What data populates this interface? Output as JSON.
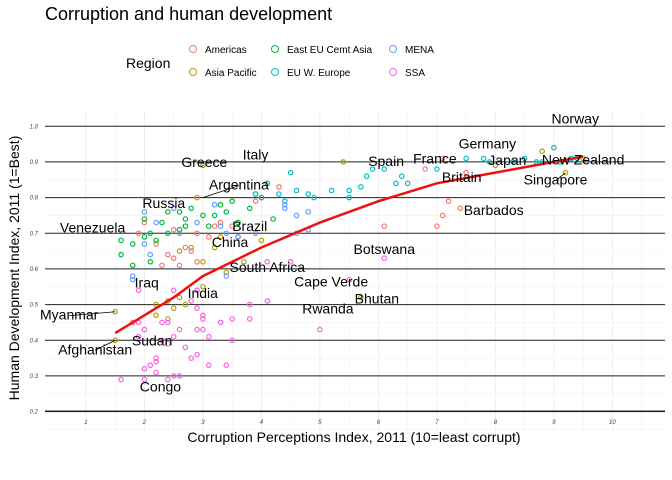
{
  "chart_data": {
    "type": "scatter",
    "title": "Corruption and human development",
    "xlabel": "Corruption Perceptions Index, 2011 (10=least corrupt)",
    "ylabel": "Human Development Index, 2011 (1=Best)",
    "xlim": [
      0.3,
      10.9
    ],
    "ylim": [
      0.14,
      1.04
    ],
    "xticks": [
      "1",
      "2",
      "3",
      "4",
      "5",
      "6",
      "7",
      "8",
      "9",
      "10"
    ],
    "yticks": [
      "0.2",
      "0.3",
      "0.4",
      "0.5",
      "0.6",
      "0.7",
      "0.8",
      "0.9",
      "1.0"
    ],
    "legend": {
      "title": "Region",
      "position": "top",
      "entries": [
        {
          "name": "Americas",
          "color": "#F8766D"
        },
        {
          "name": "Asia Pacific",
          "color": "#B79F00"
        },
        {
          "name": "East EU Cemt Asia",
          "color": "#00BA38"
        },
        {
          "name": "EU W. Europe",
          "color": "#00BFC4"
        },
        {
          "name": "MENA",
          "color": "#619CFF"
        },
        {
          "name": "SSA",
          "color": "#F564E3"
        }
      ]
    },
    "trend": {
      "color": "#EE1111",
      "points": [
        [
          1.5,
          0.42
        ],
        [
          2,
          0.47
        ],
        [
          2.5,
          0.52
        ],
        [
          3,
          0.58
        ],
        [
          4,
          0.66
        ],
        [
          5,
          0.73
        ],
        [
          6,
          0.79
        ],
        [
          7,
          0.84
        ],
        [
          8,
          0.87
        ],
        [
          9,
          0.9
        ],
        [
          9.5,
          0.915
        ]
      ]
    },
    "series": [
      {
        "name": "Americas",
        "points": [
          [
            7.1,
            0.91
          ],
          [
            6.8,
            0.88
          ],
          [
            7.5,
            0.87
          ],
          [
            7.2,
            0.79
          ],
          [
            7.0,
            0.72
          ],
          [
            7.1,
            0.75
          ],
          [
            7.4,
            0.77
          ],
          [
            6.1,
            0.72
          ],
          [
            4.3,
            0.83
          ],
          [
            3.9,
            0.79
          ],
          [
            3.6,
            0.69
          ],
          [
            3.3,
            0.73
          ],
          [
            3.1,
            0.69
          ],
          [
            3.2,
            0.72
          ],
          [
            2.7,
            0.72
          ],
          [
            2.7,
            0.66
          ],
          [
            2.4,
            0.64
          ],
          [
            2.5,
            0.71
          ],
          [
            2.2,
            0.67
          ],
          [
            2.8,
            0.65
          ],
          [
            3.5,
            0.72
          ],
          [
            2.6,
            0.61
          ],
          [
            2.3,
            0.61
          ],
          [
            2.9,
            0.62
          ],
          [
            2.5,
            0.63
          ],
          [
            2.9,
            0.7
          ],
          [
            1.8,
            0.45
          ],
          [
            2.0,
            0.73
          ],
          [
            1.9,
            0.7
          ]
        ]
      },
      {
        "name": "Asia Pacific",
        "points": [
          [
            9.5,
            0.91
          ],
          [
            8.8,
            0.93
          ],
          [
            9.2,
            0.87
          ],
          [
            8.0,
            0.89
          ],
          [
            5.4,
            0.9
          ],
          [
            3.0,
            0.89
          ],
          [
            2.9,
            0.8
          ],
          [
            3.4,
            0.59
          ],
          [
            3.6,
            0.69
          ],
          [
            3.0,
            0.62
          ],
          [
            3.3,
            0.69
          ],
          [
            3.0,
            0.55
          ],
          [
            2.4,
            0.51
          ],
          [
            2.5,
            0.49
          ],
          [
            2.7,
            0.5
          ],
          [
            2.6,
            0.52
          ],
          [
            2.2,
            0.47
          ],
          [
            1.5,
            0.4
          ],
          [
            2.2,
            0.5
          ],
          [
            1.5,
            0.48
          ],
          [
            2.4,
            0.46
          ],
          [
            2.8,
            0.66
          ],
          [
            3.2,
            0.66
          ],
          [
            4.0,
            0.68
          ],
          [
            3.7,
            0.62
          ],
          [
            2.6,
            0.65
          ],
          [
            5.7,
            0.52
          ]
        ]
      },
      {
        "name": "East EU Cemt Asia",
        "points": [
          [
            4.1,
            0.84
          ],
          [
            4.0,
            0.8
          ],
          [
            3.9,
            0.81
          ],
          [
            3.5,
            0.79
          ],
          [
            3.4,
            0.76
          ],
          [
            3.3,
            0.78
          ],
          [
            3.0,
            0.75
          ],
          [
            2.7,
            0.74
          ],
          [
            2.6,
            0.76
          ],
          [
            2.4,
            0.76
          ],
          [
            2.7,
            0.72
          ],
          [
            2.3,
            0.73
          ],
          [
            2.1,
            0.7
          ],
          [
            2.4,
            0.7
          ],
          [
            2.2,
            0.68
          ],
          [
            2.0,
            0.69
          ],
          [
            1.6,
            0.68
          ],
          [
            1.8,
            0.67
          ],
          [
            2.1,
            0.62
          ],
          [
            1.6,
            0.64
          ],
          [
            1.8,
            0.61
          ],
          [
            2.6,
            0.71
          ],
          [
            3.1,
            0.72
          ],
          [
            3.2,
            0.75
          ],
          [
            2.8,
            0.77
          ],
          [
            3.8,
            0.77
          ],
          [
            4.2,
            0.74
          ],
          [
            3.6,
            0.73
          ],
          [
            2.0,
            0.74
          ]
        ]
      },
      {
        "name": "EU W. Europe",
        "points": [
          [
            9.4,
            0.91
          ],
          [
            9.0,
            0.94
          ],
          [
            8.7,
            0.9
          ],
          [
            8.5,
            0.91
          ],
          [
            8.3,
            0.9
          ],
          [
            7.9,
            0.9
          ],
          [
            7.8,
            0.91
          ],
          [
            7.5,
            0.91
          ],
          [
            7.0,
            0.88
          ],
          [
            6.1,
            0.88
          ],
          [
            5.9,
            0.88
          ],
          [
            6.5,
            0.84
          ],
          [
            6.3,
            0.84
          ],
          [
            5.8,
            0.86
          ],
          [
            5.5,
            0.82
          ],
          [
            5.7,
            0.83
          ],
          [
            5.5,
            0.8
          ],
          [
            5.2,
            0.82
          ],
          [
            4.8,
            0.81
          ],
          [
            4.6,
            0.82
          ],
          [
            4.4,
            0.79
          ],
          [
            3.9,
            0.81
          ],
          [
            4.3,
            0.81
          ],
          [
            8.8,
            0.9
          ],
          [
            9.1,
            0.9
          ],
          [
            9.3,
            0.91
          ],
          [
            6.4,
            0.86
          ],
          [
            4.9,
            0.8
          ],
          [
            4.5,
            0.87
          ]
        ]
      },
      {
        "name": "MENA",
        "points": [
          [
            2.0,
            0.76
          ],
          [
            2.2,
            0.73
          ],
          [
            2.5,
            0.77
          ],
          [
            3.2,
            0.78
          ],
          [
            4.6,
            0.75
          ],
          [
            4.8,
            0.76
          ],
          [
            4.6,
            0.7
          ],
          [
            4.4,
            0.77
          ],
          [
            3.9,
            0.7
          ],
          [
            3.6,
            0.69
          ],
          [
            3.4,
            0.7
          ],
          [
            2.9,
            0.73
          ],
          [
            3.3,
            0.72
          ],
          [
            2.6,
            0.7
          ],
          [
            2.1,
            0.64
          ],
          [
            1.8,
            0.57
          ],
          [
            1.8,
            0.58
          ],
          [
            3.4,
            0.58
          ],
          [
            4.4,
            0.78
          ],
          [
            4.8,
            0.71
          ],
          [
            2.0,
            0.67
          ]
        ]
      },
      {
        "name": "SSA",
        "points": [
          [
            6.1,
            0.63
          ],
          [
            5.5,
            0.57
          ],
          [
            5.0,
            0.43
          ],
          [
            4.5,
            0.62
          ],
          [
            4.1,
            0.62
          ],
          [
            4.1,
            0.51
          ],
          [
            3.8,
            0.5
          ],
          [
            3.5,
            0.46
          ],
          [
            3.3,
            0.45
          ],
          [
            3.0,
            0.47
          ],
          [
            3.1,
            0.41
          ],
          [
            3.0,
            0.43
          ],
          [
            2.9,
            0.36
          ],
          [
            2.8,
            0.35
          ],
          [
            2.9,
            0.43
          ],
          [
            2.7,
            0.38
          ],
          [
            2.6,
            0.43
          ],
          [
            2.5,
            0.41
          ],
          [
            2.4,
            0.39
          ],
          [
            2.2,
            0.35
          ],
          [
            2.4,
            0.29
          ],
          [
            2.2,
            0.34
          ],
          [
            2.0,
            0.29
          ],
          [
            2.3,
            0.4
          ],
          [
            2.1,
            0.33
          ],
          [
            2.0,
            0.32
          ],
          [
            1.9,
            0.54
          ],
          [
            2.5,
            0.54
          ],
          [
            2.2,
            0.31
          ],
          [
            2.0,
            0.43
          ],
          [
            2.9,
            0.54
          ],
          [
            3.1,
            0.33
          ],
          [
            3.4,
            0.33
          ],
          [
            3.5,
            0.4
          ],
          [
            2.6,
            0.3
          ],
          [
            2.8,
            0.51
          ],
          [
            1.9,
            0.45
          ],
          [
            2.9,
            0.49
          ],
          [
            3.0,
            0.46
          ],
          [
            2.5,
            0.3
          ],
          [
            1.6,
            0.29
          ],
          [
            2.3,
            0.45
          ],
          [
            3.8,
            0.46
          ],
          [
            2.4,
            0.45
          ],
          [
            1.9,
            0.41
          ]
        ]
      }
    ],
    "annotations": [
      {
        "label": "Norway",
        "x": 9.4,
        "y": 0.94
      },
      {
        "label": "Germany",
        "x": 8.0,
        "y": 0.91
      },
      {
        "label": "France",
        "x": 7.0,
        "y": 0.89
      },
      {
        "label": "New Zealand",
        "x": 9.5,
        "y": 0.91
      },
      {
        "label": "Japan",
        "x": 8.0,
        "y": 0.9
      },
      {
        "label": "Singapore",
        "x": 9.2,
        "y": 0.87
      },
      {
        "label": "Italy",
        "x": 3.9,
        "y": 0.87
      },
      {
        "label": "Greece",
        "x": 3.4,
        "y": 0.86
      },
      {
        "label": "Spain",
        "x": 6.2,
        "y": 0.88
      },
      {
        "label": "Britain",
        "x": 7.8,
        "y": 0.86
      },
      {
        "label": "Barbados",
        "x": 7.8,
        "y": 0.79
      },
      {
        "label": "Argentina",
        "x": 3.0,
        "y": 0.8
      },
      {
        "label": "Russia",
        "x": 2.4,
        "y": 0.76
      },
      {
        "label": "Brazil",
        "x": 3.8,
        "y": 0.72
      },
      {
        "label": "Venezuela",
        "x": 1.9,
        "y": 0.73
      },
      {
        "label": "China",
        "x": 3.6,
        "y": 0.69
      },
      {
        "label": "South Africa",
        "x": 4.1,
        "y": 0.62
      },
      {
        "label": "Botswana",
        "x": 6.1,
        "y": 0.63
      },
      {
        "label": "Cape Verde",
        "x": 5.5,
        "y": 0.57
      },
      {
        "label": "Iraq",
        "x": 1.8,
        "y": 0.57
      },
      {
        "label": "India",
        "x": 3.1,
        "y": 0.55
      },
      {
        "label": "Myanmar",
        "x": 1.5,
        "y": 0.48
      },
      {
        "label": "Bhutan",
        "x": 5.7,
        "y": 0.52
      },
      {
        "label": "Sudan",
        "x": 2.2,
        "y": 0.41
      },
      {
        "label": "Rwanda",
        "x": 5.0,
        "y": 0.43
      },
      {
        "label": "Afghanistan",
        "x": 1.5,
        "y": 0.4
      },
      {
        "label": "Congo",
        "x": 2.0,
        "y": 0.29
      }
    ]
  }
}
